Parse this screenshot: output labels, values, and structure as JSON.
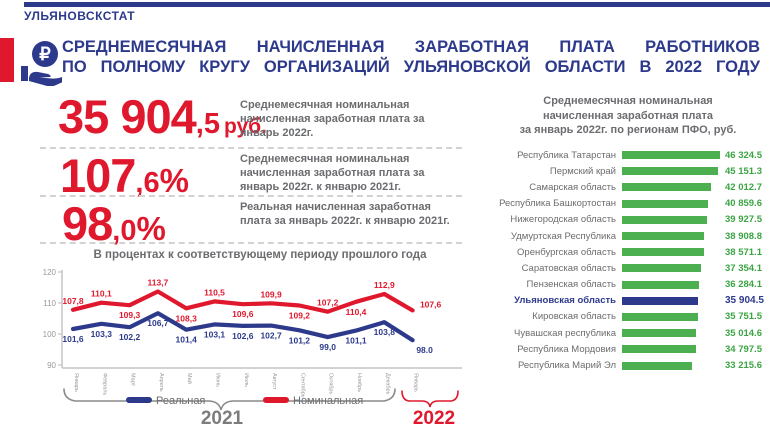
{
  "colors": {
    "navy": "#2D3A8C",
    "red": "#E0182D",
    "gray_text": "#6B6C6F",
    "green_bar": "#4CB050",
    "green_text": "#3BA543",
    "axis_gray": "#C4C4C4",
    "year_gray": "#7C7C7C"
  },
  "header": {
    "org": "УЛЬЯНОВСКСТАТ"
  },
  "title": {
    "line1": "СРЕДНЕМЕСЯЧНАЯ НАЧИСЛЕННАЯ ЗАРАБОТНАЯ ПЛАТА РАБОТНИКОВ",
    "line2": "ПО ПОЛНОМУ КРУГУ ОРГАНИЗАЦИЙ УЛЬЯНОВСКОЙ ОБЛАСТИ В 2022 ГОДУ"
  },
  "icon": {
    "symbol": "₽"
  },
  "stats": [
    {
      "value_main": "35 904",
      "value_frac": ",5",
      "unit": "руб.",
      "desc": "Среднемесячная номинальная начисленная заработная плата за январь 2022г."
    },
    {
      "value_main": "107",
      "value_frac": ",6",
      "unit": "%",
      "desc": "Среднемесячная номинальная начисленная заработная плата за январь 2022г. к январю 2021г."
    },
    {
      "value_main": "98",
      "value_frac": ",0",
      "unit": "%",
      "desc": "Реальная начисленная заработная плата за январь 2022г. к январю 2021г."
    }
  ],
  "chart_data": [
    {
      "type": "line",
      "title": "В процентах к соответствующему периоду прошлого года",
      "x": [
        "Январь",
        "Февраль",
        "Март",
        "Апрель",
        "Май",
        "Июнь",
        "Июль",
        "Август",
        "Сентябрь",
        "Октябрь",
        "Ноябрь",
        "Декабрь",
        "Январь"
      ],
      "ylim": [
        90,
        120
      ],
      "yticks": [
        90,
        100,
        110,
        120
      ],
      "series": [
        {
          "name": "Реальная",
          "color": "#2D3A8C",
          "values": [
            101.6,
            103.3,
            102.2,
            106.7,
            101.4,
            103.1,
            102.6,
            102.7,
            101.2,
            99.0,
            101.1,
            103.8,
            98.0
          ],
          "labels": [
            "101,6",
            "103,3",
            "102,2",
            "106,7",
            "101,4",
            "103,1",
            "102,6",
            "102,7",
            "101,2",
            "99,0",
            "101,1",
            "103,8",
            "98.0"
          ],
          "label_side": [
            "below",
            "below",
            "below",
            "below",
            "below",
            "below",
            "below",
            "below",
            "below",
            "below",
            "below",
            "below",
            "below"
          ]
        },
        {
          "name": "Номинальная",
          "color": "#E0182D",
          "values": [
            107.8,
            110.1,
            109.3,
            113.7,
            108.3,
            110.5,
            109.6,
            109.9,
            109.2,
            107.2,
            110.4,
            112.9,
            107.6
          ],
          "labels": [
            "107,8",
            "110,1",
            "109,3",
            "113,7",
            "108,3",
            "110,5",
            "109,6",
            "109,9",
            "109,2",
            "107,2",
            "110,4",
            "112,9",
            "107,6"
          ],
          "label_side": [
            "above",
            "above",
            "below",
            "above",
            "below",
            "above",
            "below",
            "above",
            "below",
            "above",
            "below",
            "above",
            "above"
          ]
        }
      ],
      "x_groups": [
        {
          "label": "2021",
          "span": 12
        },
        {
          "label": "2022",
          "span": 1
        }
      ]
    },
    {
      "type": "bar",
      "title_lines": [
        "Среднемесячная номинальная",
        "начисленная заработная плата",
        "за январь 2022г. по регионам ПФО, руб."
      ],
      "categories": [
        "Республика Татарстан",
        "Пермский край",
        "Самарская область",
        "Республика Башкортостан",
        "Нижегородская область",
        "Удмуртская Республика",
        "Оренбургская область",
        "Саратовская область",
        "Пензенская область",
        "Ульяновская область",
        "Кировская область",
        "Чувашская республика",
        "Республика Мордовия",
        "Республика Марий Эл"
      ],
      "values": [
        46324.5,
        45151.3,
        42012.7,
        40859.6,
        39927.5,
        38908.8,
        38571.1,
        37354.1,
        36284.1,
        35904.5,
        35751.5,
        35014.6,
        34797.5,
        33215.6
      ],
      "value_labels": [
        "46 324.5",
        "45 151.3",
        "42 012.7",
        "40 859.6",
        "39 927.5",
        "38 908.8",
        "38 571.1",
        "37 354.1",
        "36 284.1",
        "35 904.5",
        "35 751.5",
        "35 014.6",
        "34 797.5",
        "33 215.6"
      ],
      "highlight_index": 9
    }
  ]
}
